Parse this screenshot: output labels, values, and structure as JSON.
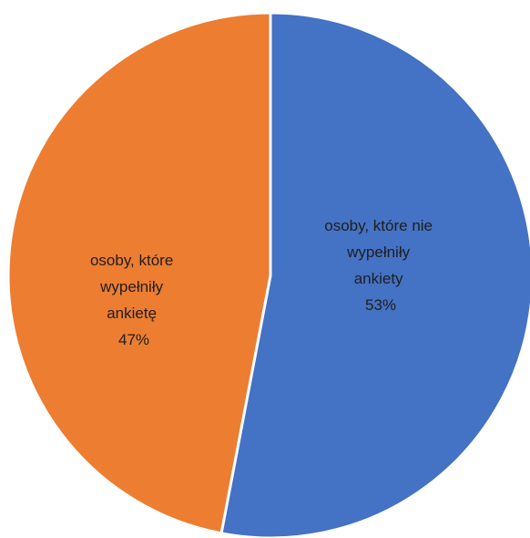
{
  "chart_data": {
    "type": "pie",
    "title": "",
    "slices": [
      {
        "label_lines": [
          "osoby, które nie",
          "wypełniły",
          "ankiety"
        ],
        "percent_label": "53%",
        "value": 53,
        "color": "#4472C4"
      },
      {
        "label_lines": [
          "osoby, które",
          "wypełniły",
          "ankietę"
        ],
        "percent_label": "47%",
        "value": 47,
        "color": "#ED7D31"
      }
    ],
    "start_angle_deg": 0,
    "direction": "clockwise",
    "slice_border": "#ffffff",
    "legend": "none"
  }
}
